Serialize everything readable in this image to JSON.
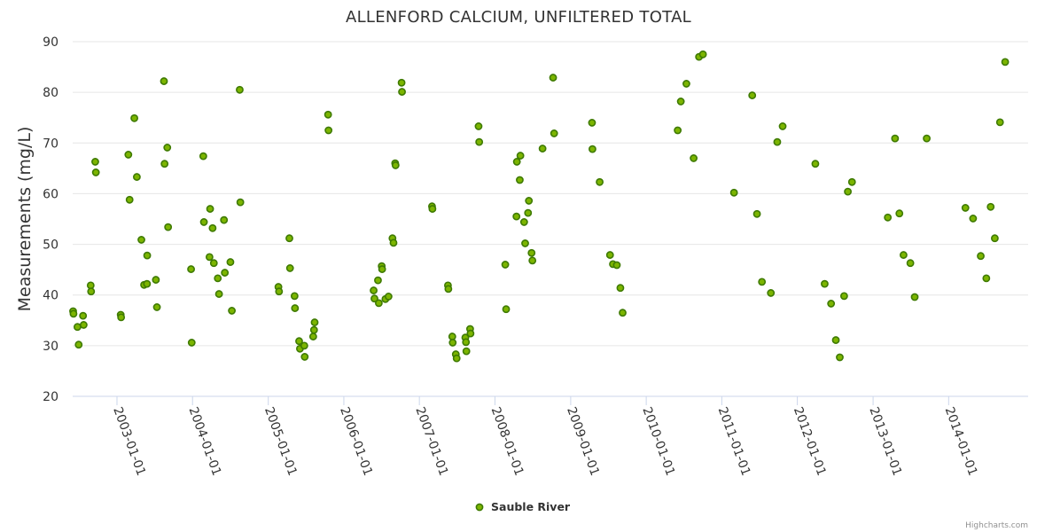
{
  "chart_data": {
    "type": "scatter",
    "title": "ALLENFORD CALCIUM, UNFILTERED TOTAL",
    "ylabel": "Measurements (mg/L)",
    "xlabel": "",
    "ylim": [
      20,
      90
    ],
    "yticks": [
      "20",
      "30",
      "40",
      "50",
      "60",
      "70",
      "80",
      "90"
    ],
    "xlim": [
      "2002-06-01",
      "2015-01-20"
    ],
    "xticks": [
      "2003-01-01",
      "2004-01-01",
      "2005-01-01",
      "2006-01-01",
      "2007-01-01",
      "2008-01-01",
      "2009-01-01",
      "2010-01-01",
      "2011-01-01",
      "2012-01-01",
      "2013-01-01",
      "2014-01-01"
    ],
    "grid": "horizontal",
    "legend_position": "bottom-center",
    "credits": "Highcharts.com",
    "colors": {
      "marker_fill": "#7cb500",
      "marker_stroke": "#3e7a00"
    },
    "series": [
      {
        "name": "Sauble River",
        "points": [
          [
            "2002-06-03",
            36.8
          ],
          [
            "2002-06-05",
            36.3
          ],
          [
            "2002-06-24",
            33.7
          ],
          [
            "2002-06-30",
            30.2
          ],
          [
            "2002-07-21",
            35.9
          ],
          [
            "2002-07-24",
            34.1
          ],
          [
            "2002-08-27",
            41.9
          ],
          [
            "2002-08-29",
            40.7
          ],
          [
            "2002-09-18",
            66.3
          ],
          [
            "2002-09-21",
            64.2
          ],
          [
            "2003-01-19",
            36.1
          ],
          [
            "2003-01-21",
            35.6
          ],
          [
            "2003-02-25",
            67.7
          ],
          [
            "2003-03-03",
            58.8
          ],
          [
            "2003-03-26",
            74.9
          ],
          [
            "2003-04-07",
            63.3
          ],
          [
            "2003-04-29",
            50.9
          ],
          [
            "2003-05-12",
            42.0
          ],
          [
            "2003-05-26",
            42.2
          ],
          [
            "2003-05-27",
            47.8
          ],
          [
            "2003-07-08",
            43.0
          ],
          [
            "2003-07-13",
            37.6
          ],
          [
            "2003-08-16",
            82.2
          ],
          [
            "2003-08-19",
            65.9
          ],
          [
            "2003-09-01",
            69.1
          ],
          [
            "2003-09-05",
            53.4
          ],
          [
            "2003-12-25",
            45.1
          ],
          [
            "2003-12-28",
            30.6
          ],
          [
            "2004-02-22",
            67.4
          ],
          [
            "2004-02-25",
            54.4
          ],
          [
            "2004-03-23",
            47.5
          ],
          [
            "2004-03-26",
            57.0
          ],
          [
            "2004-04-07",
            53.2
          ],
          [
            "2004-04-13",
            46.3
          ],
          [
            "2004-05-02",
            43.3
          ],
          [
            "2004-05-08",
            40.2
          ],
          [
            "2004-06-01",
            54.8
          ],
          [
            "2004-06-05",
            44.4
          ],
          [
            "2004-07-02",
            46.5
          ],
          [
            "2004-07-09",
            36.9
          ],
          [
            "2004-08-16",
            80.5
          ],
          [
            "2004-08-19",
            58.3
          ],
          [
            "2005-02-19",
            41.6
          ],
          [
            "2005-02-22",
            40.7
          ],
          [
            "2005-04-13",
            51.2
          ],
          [
            "2005-04-16",
            45.3
          ],
          [
            "2005-05-08",
            39.8
          ],
          [
            "2005-05-10",
            37.4
          ],
          [
            "2005-05-30",
            30.9
          ],
          [
            "2005-06-03",
            29.4
          ],
          [
            "2005-06-24",
            30.0
          ],
          [
            "2005-06-26",
            27.8
          ],
          [
            "2005-08-06",
            31.8
          ],
          [
            "2005-08-10",
            33.1
          ],
          [
            "2005-08-13",
            34.6
          ],
          [
            "2005-10-17",
            75.6
          ],
          [
            "2005-10-19",
            72.5
          ],
          [
            "2006-05-25",
            40.9
          ],
          [
            "2006-05-29",
            39.3
          ],
          [
            "2006-06-15",
            42.9
          ],
          [
            "2006-06-19",
            38.4
          ],
          [
            "2006-07-03",
            45.7
          ],
          [
            "2006-07-05",
            45.1
          ],
          [
            "2006-07-21",
            39.2
          ],
          [
            "2006-08-05",
            39.7
          ],
          [
            "2006-08-24",
            51.2
          ],
          [
            "2006-08-29",
            50.3
          ],
          [
            "2006-09-06",
            66.0
          ],
          [
            "2006-09-08",
            65.6
          ],
          [
            "2006-10-07",
            81.9
          ],
          [
            "2006-10-09",
            80.1
          ],
          [
            "2007-03-03",
            57.5
          ],
          [
            "2007-03-05",
            57.0
          ],
          [
            "2007-05-19",
            41.9
          ],
          [
            "2007-05-21",
            41.2
          ],
          [
            "2007-06-09",
            31.8
          ],
          [
            "2007-06-11",
            30.6
          ],
          [
            "2007-06-26",
            28.3
          ],
          [
            "2007-06-30",
            27.5
          ],
          [
            "2007-08-11",
            31.6
          ],
          [
            "2007-08-14",
            30.7
          ],
          [
            "2007-08-16",
            28.9
          ],
          [
            "2007-09-03",
            33.3
          ],
          [
            "2007-09-05",
            32.4
          ],
          [
            "2007-10-14",
            73.3
          ],
          [
            "2007-10-17",
            70.2
          ],
          [
            "2008-02-20",
            46.0
          ],
          [
            "2008-02-24",
            37.2
          ],
          [
            "2008-04-14",
            55.5
          ],
          [
            "2008-04-16",
            66.3
          ],
          [
            "2008-04-30",
            62.7
          ],
          [
            "2008-05-03",
            67.5
          ],
          [
            "2008-05-21",
            54.4
          ],
          [
            "2008-05-26",
            50.2
          ],
          [
            "2008-06-09",
            56.2
          ],
          [
            "2008-06-13",
            58.6
          ],
          [
            "2008-06-26",
            48.3
          ],
          [
            "2008-06-30",
            46.8
          ],
          [
            "2008-08-18",
            68.9
          ],
          [
            "2008-10-08",
            82.9
          ],
          [
            "2008-10-13",
            71.9
          ],
          [
            "2009-04-14",
            74.0
          ],
          [
            "2009-04-16",
            68.8
          ],
          [
            "2009-05-21",
            62.3
          ],
          [
            "2009-07-10",
            47.9
          ],
          [
            "2009-07-24",
            46.1
          ],
          [
            "2009-08-12",
            45.9
          ],
          [
            "2009-08-29",
            41.4
          ],
          [
            "2009-09-09",
            36.5
          ],
          [
            "2010-06-02",
            72.5
          ],
          [
            "2010-06-17",
            78.2
          ],
          [
            "2010-07-14",
            81.7
          ],
          [
            "2010-08-18",
            67.0
          ],
          [
            "2010-09-13",
            87.0
          ],
          [
            "2010-10-02",
            87.5
          ],
          [
            "2011-03-01",
            60.2
          ],
          [
            "2011-05-28",
            79.4
          ],
          [
            "2011-06-20",
            56.0
          ],
          [
            "2011-07-14",
            42.6
          ],
          [
            "2011-08-26",
            40.4
          ],
          [
            "2011-09-26",
            70.2
          ],
          [
            "2011-10-22",
            73.3
          ],
          [
            "2012-03-28",
            65.9
          ],
          [
            "2012-05-12",
            42.2
          ],
          [
            "2012-06-12",
            38.3
          ],
          [
            "2012-07-05",
            31.1
          ],
          [
            "2012-07-24",
            27.7
          ],
          [
            "2012-08-14",
            39.8
          ],
          [
            "2012-09-01",
            60.4
          ],
          [
            "2012-09-21",
            62.3
          ],
          [
            "2013-03-13",
            55.3
          ],
          [
            "2013-04-17",
            70.9
          ],
          [
            "2013-05-08",
            56.1
          ],
          [
            "2013-05-28",
            47.9
          ],
          [
            "2013-06-30",
            46.3
          ],
          [
            "2013-07-21",
            39.6
          ],
          [
            "2013-09-17",
            70.9
          ],
          [
            "2014-03-23",
            57.2
          ],
          [
            "2014-04-29",
            55.1
          ],
          [
            "2014-06-05",
            47.7
          ],
          [
            "2014-07-02",
            43.3
          ],
          [
            "2014-07-23",
            57.4
          ],
          [
            "2014-08-12",
            51.2
          ],
          [
            "2014-09-06",
            74.1
          ],
          [
            "2014-10-01",
            86.0
          ]
        ]
      }
    ]
  }
}
